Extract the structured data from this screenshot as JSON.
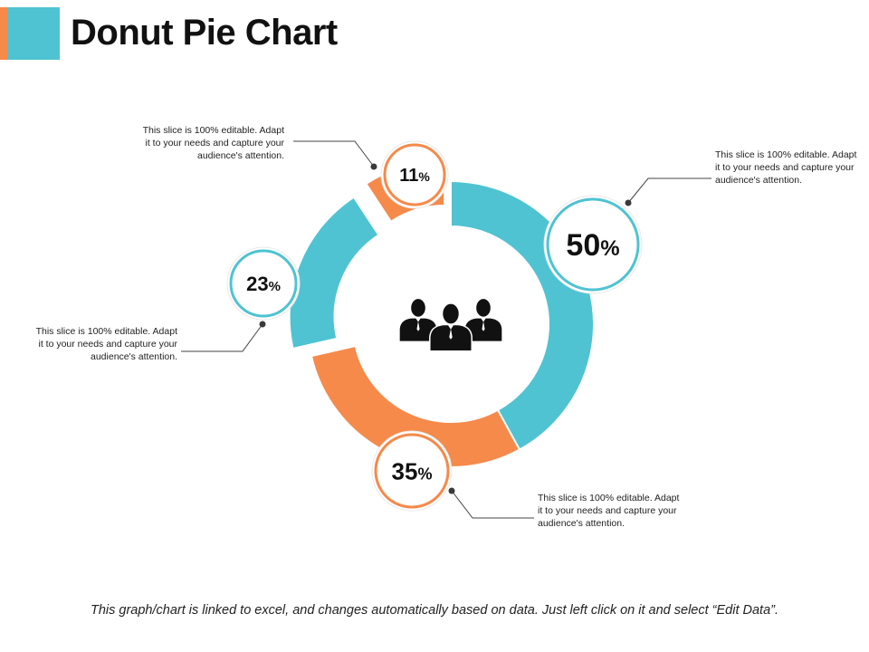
{
  "page": {
    "title": "Donut Pie Chart",
    "footer": "This graph/chart is linked to excel, and changes automatically based on data. Just left click on it and select “Edit Data”.",
    "accent_colors": {
      "teal": "#4fc3d2",
      "orange": "#f58a4b"
    },
    "center_icon": "people-group-icon"
  },
  "chart_data": {
    "type": "pie",
    "variant": "donut",
    "title": "Donut Pie Chart",
    "slices": [
      {
        "value": 50,
        "label": "50",
        "color": "#4fc3d2",
        "description": "This slice is 100% editable. Adapt it to your needs and capture your audience's attention."
      },
      {
        "value": 35,
        "label": "35",
        "color": "#f58a4b",
        "description": "This slice is 100% editable. Adapt it to your needs and capture your audience's attention."
      },
      {
        "value": 23,
        "label": "23",
        "color": "#4fc3d2",
        "description": "This slice is 100% editable. Adapt it to your needs and capture your audience's attention."
      },
      {
        "value": 11,
        "label": "11",
        "color": "#f58a4b",
        "description": "This slice is 100% editable. Adapt it to your needs and capture your audience's attention."
      }
    ],
    "percent_sign": "%",
    "legend": "none"
  }
}
